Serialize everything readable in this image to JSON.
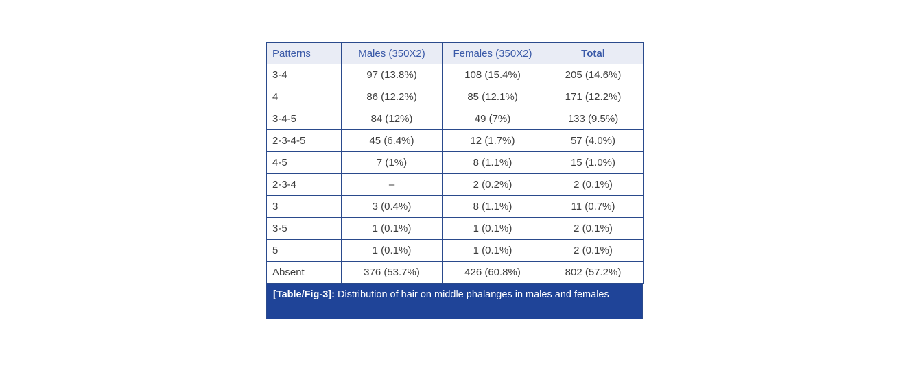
{
  "table": {
    "columns": [
      "Patterns",
      "Males (350X2)",
      "Females (350X2)",
      "Total"
    ],
    "rows": [
      [
        "3-4",
        "97 (13.8%)",
        "108 (15.4%)",
        "205 (14.6%)"
      ],
      [
        "4",
        "86 (12.2%)",
        "85 (12.1%)",
        "171 (12.2%)"
      ],
      [
        "3-4-5",
        "84 (12%)",
        "49 (7%)",
        "133 (9.5%)"
      ],
      [
        "2-3-4-5",
        "45 (6.4%)",
        "12 (1.7%)",
        "57 (4.0%)"
      ],
      [
        "4-5",
        "7 (1%)",
        "8 (1.1%)",
        "15 (1.0%)"
      ],
      [
        "2-3-4",
        "–",
        "2 (0.2%)",
        "2 (0.1%)"
      ],
      [
        "3",
        "3 (0.4%)",
        "8 (1.1%)",
        "11 (0.7%)"
      ],
      [
        "3-5",
        "1 (0.1%)",
        "1 (0.1%)",
        "2 (0.1%)"
      ],
      [
        "5",
        "1 (0.1%)",
        "1 (0.1%)",
        "2 (0.1%)"
      ],
      [
        "Absent",
        "376 (53.7%)",
        "426 (60.8%)",
        "802 (57.2%)"
      ]
    ],
    "caption": {
      "label": "[Table/Fig-3]:",
      "text": " Distribution of hair on middle phalanges in males and females"
    },
    "colors": {
      "border": "#2a4a8c",
      "header_bg": "#e9ecf5",
      "header_text": "#3b5aa8",
      "body_text": "#3f3f3f",
      "caption_bg": "#1f4498",
      "caption_text": "#ffffff"
    }
  }
}
